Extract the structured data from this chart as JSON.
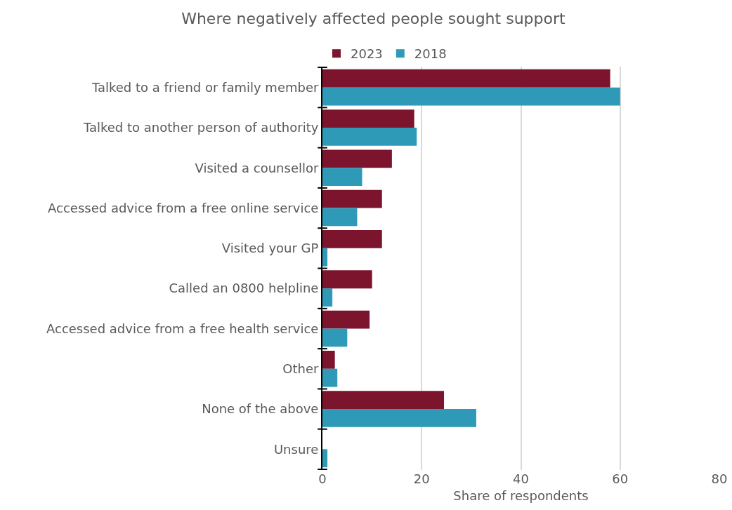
{
  "chart_data": {
    "type": "bar",
    "orientation": "horizontal",
    "title": "Where negatively affected people sought support",
    "xlabel": "Share of respondents",
    "categories": [
      "Talked to a friend or family member",
      "Talked to another person of authority",
      "Visited a counsellor",
      "Accessed advice from a free online service",
      "Visited your GP",
      "Called an 0800 helpline",
      "Accessed advice from a free health service",
      "Other",
      "None of the above",
      "Unsure"
    ],
    "series": [
      {
        "name": "2023",
        "color": "#7b142c",
        "values": [
          58,
          18.5,
          14,
          12,
          12,
          10,
          9.5,
          2.5,
          24.5,
          0
        ]
      },
      {
        "name": "2018",
        "color": "#2e9ab7",
        "values": [
          60,
          19,
          8,
          7,
          1,
          2,
          5,
          3,
          31,
          1
        ]
      }
    ],
    "xlim": [
      0,
      80
    ],
    "xticks": [
      0,
      20,
      40,
      60,
      80
    ],
    "grid": "x",
    "legend": "top left"
  }
}
